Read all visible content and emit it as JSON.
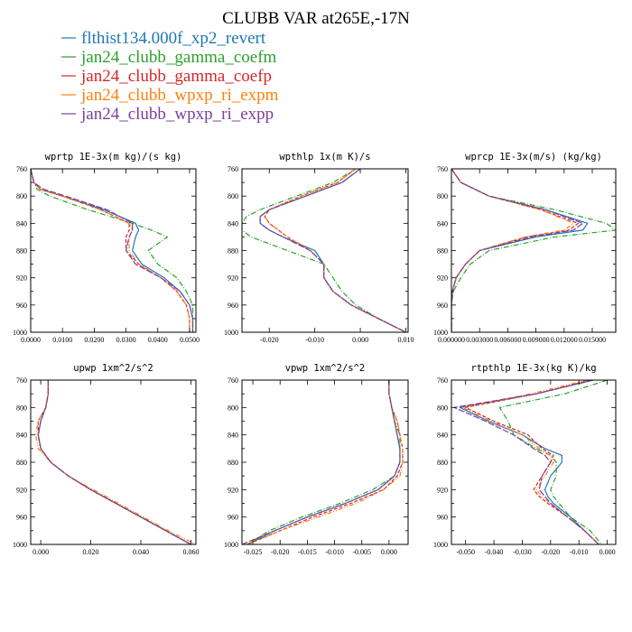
{
  "figure": {
    "title": "CLUBB VAR at265E,-17N"
  },
  "legend": [
    {
      "name": "flthist134.000f_xp2_revert",
      "color": "#1f77b4"
    },
    {
      "name": "jan24_clubb_gamma_coefm",
      "color": "#2ca02c"
    },
    {
      "name": "jan24_clubb_gamma_coefp",
      "color": "#d62728"
    },
    {
      "name": "jan24_clubb_wpxp_ri_expm",
      "color": "#ff7f0e"
    },
    {
      "name": "jan24_clubb_wpxp_ri_expp",
      "color": "#7b3f9e"
    }
  ],
  "chart_data": [
    {
      "type": "line",
      "title": "wprtp  1E-3x(m kg)/(s kg)",
      "xlim": [
        0.0,
        0.052
      ],
      "ylim": [
        760,
        1000
      ],
      "y_reversed": true,
      "xticks": [
        0.0,
        0.01,
        0.02,
        0.03,
        0.04,
        0.05
      ],
      "xtick_labels": [
        "0.0000",
        "0.0100",
        "0.0200",
        "0.0300",
        "0.0400",
        "0.0500"
      ],
      "yticks": [
        760,
        800,
        840,
        880,
        920,
        960,
        1000
      ],
      "ytick_labels": [
        "760",
        "800",
        "840",
        "880",
        "920",
        "960",
        "1000"
      ],
      "y": [
        760,
        780,
        790,
        800,
        820,
        840,
        850,
        860,
        880,
        900,
        920,
        940,
        960,
        980,
        1000
      ],
      "series": [
        {
          "name": "flthist134.000f_xp2_revert",
          "values": [
            0.0,
            0.001,
            0.003,
            0.01,
            0.023,
            0.033,
            0.034,
            0.033,
            0.032,
            0.035,
            0.042,
            0.047,
            0.05,
            0.051,
            0.051
          ]
        },
        {
          "name": "jan24_clubb_gamma_coefm",
          "values": [
            0.0,
            0.001,
            0.002,
            0.006,
            0.018,
            0.032,
            0.038,
            0.043,
            0.037,
            0.04,
            0.046,
            0.049,
            0.051,
            0.051,
            0.051
          ]
        },
        {
          "name": "jan24_clubb_gamma_coefp",
          "values": [
            0.0,
            0.001,
            0.003,
            0.01,
            0.022,
            0.031,
            0.031,
            0.03,
            0.03,
            0.034,
            0.041,
            0.046,
            0.049,
            0.05,
            0.05
          ]
        },
        {
          "name": "jan24_clubb_wpxp_ri_expm",
          "values": [
            0.0,
            0.001,
            0.003,
            0.01,
            0.022,
            0.031,
            0.032,
            0.031,
            0.031,
            0.034,
            0.041,
            0.046,
            0.049,
            0.05,
            0.05
          ]
        },
        {
          "name": "jan24_clubb_wpxp_ri_expp",
          "values": [
            0.0,
            0.001,
            0.004,
            0.011,
            0.024,
            0.032,
            0.032,
            0.031,
            0.03,
            0.033,
            0.041,
            0.047,
            0.05,
            0.051,
            0.051
          ]
        }
      ]
    },
    {
      "type": "line",
      "title": "wpthlp  1x(m K)/s",
      "xlim": [
        -0.026,
        0.0105
      ],
      "ylim": [
        760,
        1000
      ],
      "y_reversed": true,
      "xticks": [
        -0.02,
        -0.01,
        0.0,
        0.01
      ],
      "xtick_labels": [
        "-0.020",
        "-0.010",
        "0.000",
        "0.010"
      ],
      "yticks": [
        760,
        800,
        840,
        880,
        920,
        960,
        1000
      ],
      "ytick_labels": [
        "760",
        "800",
        "840",
        "880",
        "920",
        "960",
        "1000"
      ],
      "y": [
        760,
        780,
        800,
        820,
        830,
        840,
        850,
        860,
        880,
        900,
        920,
        940,
        960,
        980,
        1000
      ],
      "series": [
        {
          "name": "flthist134.000f_xp2_revert",
          "values": [
            0.0,
            -0.004,
            -0.012,
            -0.02,
            -0.022,
            -0.022,
            -0.02,
            -0.017,
            -0.01,
            -0.008,
            -0.008,
            -0.006,
            -0.002,
            0.004,
            0.01
          ]
        },
        {
          "name": "jan24_clubb_gamma_coefm",
          "values": [
            -0.001,
            -0.006,
            -0.014,
            -0.022,
            -0.025,
            -0.026,
            -0.026,
            -0.024,
            -0.016,
            -0.008,
            -0.006,
            -0.004,
            -0.001,
            0.004,
            0.01
          ]
        },
        {
          "name": "jan24_clubb_gamma_coefp",
          "values": [
            -0.001,
            -0.005,
            -0.013,
            -0.02,
            -0.021,
            -0.02,
            -0.018,
            -0.016,
            -0.011,
            -0.008,
            -0.008,
            -0.006,
            -0.002,
            0.004,
            0.01
          ]
        },
        {
          "name": "jan24_clubb_wpxp_ri_expm",
          "values": [
            -0.001,
            -0.005,
            -0.013,
            -0.02,
            -0.021,
            -0.02,
            -0.018,
            -0.016,
            -0.011,
            -0.008,
            -0.008,
            -0.006,
            -0.002,
            0.004,
            0.01
          ]
        },
        {
          "name": "jan24_clubb_wpxp_ri_expp",
          "values": [
            0.0,
            -0.004,
            -0.012,
            -0.02,
            -0.022,
            -0.022,
            -0.02,
            -0.017,
            -0.011,
            -0.008,
            -0.008,
            -0.006,
            -0.002,
            0.004,
            0.01
          ]
        }
      ]
    },
    {
      "type": "line",
      "title": "wprcp  1E-3x(m/s) (kg/kg)",
      "xlim": [
        0.0,
        0.0175
      ],
      "ylim": [
        760,
        1000
      ],
      "y_reversed": true,
      "xticks": [
        0.0,
        0.003,
        0.006,
        0.009,
        0.012,
        0.015
      ],
      "xtick_labels": [
        "0.000000",
        "0.003000",
        "0.006000",
        "0.009000",
        "0.012000",
        "0.015000"
      ],
      "yticks": [
        760,
        800,
        840,
        880,
        920,
        960,
        1000
      ],
      "ytick_labels": [
        "760",
        "800",
        "840",
        "880",
        "920",
        "960",
        "1000"
      ],
      "y": [
        760,
        780,
        800,
        820,
        840,
        850,
        860,
        880,
        900,
        920,
        940,
        960,
        980,
        1000
      ],
      "series": [
        {
          "name": "flthist134.000f_xp2_revert",
          "values": [
            0.0,
            0.001,
            0.004,
            0.01,
            0.0145,
            0.014,
            0.009,
            0.003,
            0.0015,
            0.0005,
            0.0001,
            0.0,
            0.0,
            0.0
          ]
        },
        {
          "name": "jan24_clubb_gamma_coefm",
          "values": [
            0.0,
            0.001,
            0.004,
            0.011,
            0.0165,
            0.0175,
            0.011,
            0.004,
            0.002,
            0.001,
            0.0002,
            0.0,
            0.0,
            0.0
          ]
        },
        {
          "name": "jan24_clubb_gamma_coefp",
          "values": [
            0.0,
            0.001,
            0.004,
            0.0095,
            0.0135,
            0.0125,
            0.008,
            0.003,
            0.0015,
            0.0005,
            0.0001,
            0.0,
            0.0,
            0.0
          ]
        },
        {
          "name": "jan24_clubb_wpxp_ri_expm",
          "values": [
            0.0,
            0.001,
            0.004,
            0.0095,
            0.013,
            0.012,
            0.0078,
            0.003,
            0.0015,
            0.0005,
            0.0001,
            0.0,
            0.0,
            0.0
          ]
        },
        {
          "name": "jan24_clubb_wpxp_ri_expp",
          "values": [
            0.0,
            0.001,
            0.004,
            0.01,
            0.014,
            0.013,
            0.0085,
            0.003,
            0.0015,
            0.0005,
            0.0001,
            0.0,
            0.0,
            0.0
          ]
        }
      ]
    },
    {
      "type": "line",
      "title": "upwp  1xm^2/s^2",
      "xlim": [
        -0.004,
        0.062
      ],
      "ylim": [
        760,
        1000
      ],
      "y_reversed": true,
      "xticks": [
        0.0,
        0.02,
        0.04,
        0.06
      ],
      "xtick_labels": [
        "0.000",
        "0.020",
        "0.040",
        "0.060"
      ],
      "yticks": [
        760,
        800,
        840,
        880,
        920,
        960,
        1000
      ],
      "ytick_labels": [
        "760",
        "800",
        "840",
        "880",
        "920",
        "960",
        "1000"
      ],
      "y": [
        760,
        780,
        800,
        820,
        840,
        860,
        880,
        900,
        920,
        940,
        960,
        980,
        1000
      ],
      "series": [
        {
          "name": "flthist134.000f_xp2_revert",
          "values": [
            0.003,
            0.003,
            0.002,
            0.0,
            -0.001,
            0.0,
            0.004,
            0.011,
            0.02,
            0.03,
            0.04,
            0.05,
            0.06
          ]
        },
        {
          "name": "jan24_clubb_gamma_coefm",
          "values": [
            0.003,
            0.003,
            0.002,
            0.0,
            -0.001,
            0.0,
            0.004,
            0.011,
            0.02,
            0.03,
            0.04,
            0.05,
            0.06
          ]
        },
        {
          "name": "jan24_clubb_gamma_coefp",
          "values": [
            0.003,
            0.003,
            0.002,
            -0.001,
            -0.001,
            0.0,
            0.004,
            0.011,
            0.02,
            0.03,
            0.04,
            0.05,
            0.06
          ]
        },
        {
          "name": "jan24_clubb_wpxp_ri_expm",
          "values": [
            0.003,
            0.003,
            0.002,
            -0.001,
            -0.002,
            -0.001,
            0.004,
            0.011,
            0.021,
            0.031,
            0.041,
            0.051,
            0.062
          ]
        },
        {
          "name": "jan24_clubb_wpxp_ri_expp",
          "values": [
            0.003,
            0.003,
            0.002,
            0.0,
            -0.001,
            0.0,
            0.004,
            0.011,
            0.02,
            0.03,
            0.04,
            0.05,
            0.06
          ]
        }
      ]
    },
    {
      "type": "line",
      "title": "vpwp  1xm^2/s^2",
      "xlim": [
        -0.027,
        0.0035
      ],
      "ylim": [
        760,
        1000
      ],
      "y_reversed": true,
      "xticks": [
        -0.025,
        -0.02,
        -0.015,
        -0.01,
        -0.005,
        0.0
      ],
      "xtick_labels": [
        "-0.025",
        "-0.020",
        "-0.015",
        "-0.010",
        "-0.005",
        "0.000"
      ],
      "yticks": [
        760,
        800,
        840,
        880,
        920,
        960,
        1000
      ],
      "ytick_labels": [
        "760",
        "800",
        "840",
        "880",
        "920",
        "960",
        "1000"
      ],
      "y": [
        760,
        780,
        800,
        820,
        840,
        860,
        880,
        900,
        920,
        940,
        960,
        980,
        1000
      ],
      "series": [
        {
          "name": "flthist134.000f_xp2_revert",
          "values": [
            0.0,
            0.0,
            0.0005,
            0.001,
            0.0015,
            0.002,
            0.002,
            0.001,
            -0.002,
            -0.008,
            -0.015,
            -0.021,
            -0.026
          ]
        },
        {
          "name": "jan24_clubb_gamma_coefm",
          "values": [
            0.0,
            0.0,
            0.0005,
            0.001,
            0.002,
            0.002,
            0.002,
            0.001,
            -0.003,
            -0.009,
            -0.016,
            -0.022,
            -0.026
          ]
        },
        {
          "name": "jan24_clubb_gamma_coefp",
          "values": [
            0.0,
            0.0,
            0.0005,
            0.0015,
            0.002,
            0.0025,
            0.0025,
            0.0015,
            -0.001,
            -0.007,
            -0.014,
            -0.02,
            -0.026
          ]
        },
        {
          "name": "jan24_clubb_wpxp_ri_expm",
          "values": [
            0.0,
            0.0,
            0.0005,
            0.0015,
            0.002,
            0.0025,
            0.0025,
            0.002,
            -0.001,
            -0.006,
            -0.013,
            -0.02,
            -0.026
          ]
        },
        {
          "name": "jan24_clubb_wpxp_ri_expp",
          "values": [
            0.0,
            0.0,
            0.0005,
            0.001,
            0.0015,
            0.002,
            0.002,
            0.001,
            -0.002,
            -0.008,
            -0.015,
            -0.021,
            -0.027
          ]
        }
      ]
    },
    {
      "type": "line",
      "title": "rtpthlp  1E-3x(kg K)/kg",
      "xlim": [
        -0.055,
        0.003
      ],
      "ylim": [
        760,
        1000
      ],
      "y_reversed": true,
      "xticks": [
        -0.05,
        -0.04,
        -0.03,
        -0.02,
        -0.01,
        0.0
      ],
      "xtick_labels": [
        "-0.050",
        "-0.040",
        "-0.030",
        "-0.020",
        "-0.010",
        "0.000"
      ],
      "yticks": [
        760,
        800,
        840,
        880,
        920,
        960,
        1000
      ],
      "ytick_labels": [
        "760",
        "800",
        "840",
        "880",
        "920",
        "960",
        "1000"
      ],
      "y": [
        760,
        780,
        800,
        820,
        840,
        860,
        870,
        880,
        900,
        920,
        930,
        940,
        960,
        980,
        1000
      ],
      "series": [
        {
          "name": "flthist134.000f_xp2_revert",
          "values": [
            -0.005,
            -0.025,
            -0.052,
            -0.042,
            -0.03,
            -0.022,
            -0.016,
            -0.016,
            -0.02,
            -0.022,
            -0.021,
            -0.019,
            -0.013,
            -0.008,
            -0.003
          ]
        },
        {
          "name": "jan24_clubb_gamma_coefm",
          "values": [
            0.0,
            -0.015,
            -0.038,
            -0.035,
            -0.033,
            -0.025,
            -0.02,
            -0.018,
            -0.018,
            -0.02,
            -0.019,
            -0.017,
            -0.013,
            -0.006,
            -0.002
          ]
        },
        {
          "name": "jan24_clubb_gamma_coefp",
          "values": [
            -0.006,
            -0.025,
            -0.05,
            -0.04,
            -0.028,
            -0.023,
            -0.019,
            -0.02,
            -0.023,
            -0.026,
            -0.024,
            -0.021,
            -0.014,
            -0.008,
            -0.003
          ]
        },
        {
          "name": "jan24_clubb_wpxp_ri_expm",
          "values": [
            -0.007,
            -0.027,
            -0.051,
            -0.041,
            -0.03,
            -0.024,
            -0.02,
            -0.019,
            -0.022,
            -0.025,
            -0.023,
            -0.02,
            -0.014,
            -0.008,
            -0.003
          ]
        },
        {
          "name": "jan24_clubb_wpxp_ri_expp",
          "values": [
            -0.005,
            -0.025,
            -0.054,
            -0.043,
            -0.033,
            -0.026,
            -0.022,
            -0.02,
            -0.023,
            -0.024,
            -0.022,
            -0.02,
            -0.014,
            -0.008,
            -0.003
          ]
        }
      ]
    }
  ]
}
